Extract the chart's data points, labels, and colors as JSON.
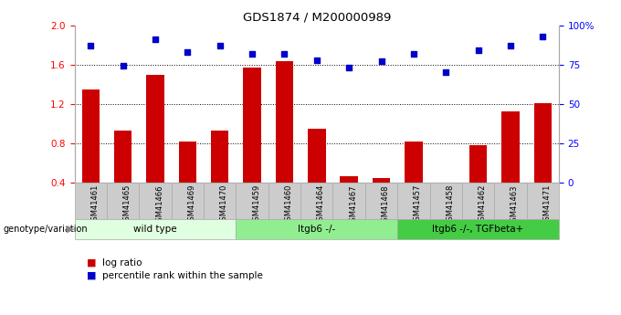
{
  "title": "GDS1874 / M200000989",
  "samples": [
    "GSM41461",
    "GSM41465",
    "GSM41466",
    "GSM41469",
    "GSM41470",
    "GSM41459",
    "GSM41460",
    "GSM41464",
    "GSM41467",
    "GSM41468",
    "GSM41457",
    "GSM41458",
    "GSM41462",
    "GSM41463",
    "GSM41471"
  ],
  "log_ratio": [
    1.35,
    0.93,
    1.5,
    0.82,
    0.93,
    1.57,
    1.63,
    0.95,
    0.47,
    0.45,
    0.82,
    0.38,
    0.78,
    1.12,
    1.21
  ],
  "percentile_rank": [
    87,
    74,
    91,
    83,
    87,
    82,
    82,
    78,
    73,
    77,
    82,
    70,
    84,
    87,
    93
  ],
  "groups": [
    {
      "label": "wild type",
      "start": 0,
      "end": 5,
      "color": "#e0ffe0"
    },
    {
      "label": "Itgb6 -/-",
      "start": 5,
      "end": 10,
      "color": "#90ee90"
    },
    {
      "label": "Itgb6 -/-, TGFbeta+",
      "start": 10,
      "end": 15,
      "color": "#44cc44"
    }
  ],
  "bar_color": "#cc0000",
  "scatter_color": "#0000cc",
  "ylim_left": [
    0.4,
    2.0
  ],
  "ylim_right": [
    0,
    100
  ],
  "yticks_left": [
    0.4,
    0.8,
    1.2,
    1.6,
    2.0
  ],
  "yticks_right": [
    0,
    25,
    50,
    75,
    100
  ],
  "xtick_bg_color": "#cccccc",
  "bg_color": "#ffffff",
  "plot_bg": "#ffffff"
}
